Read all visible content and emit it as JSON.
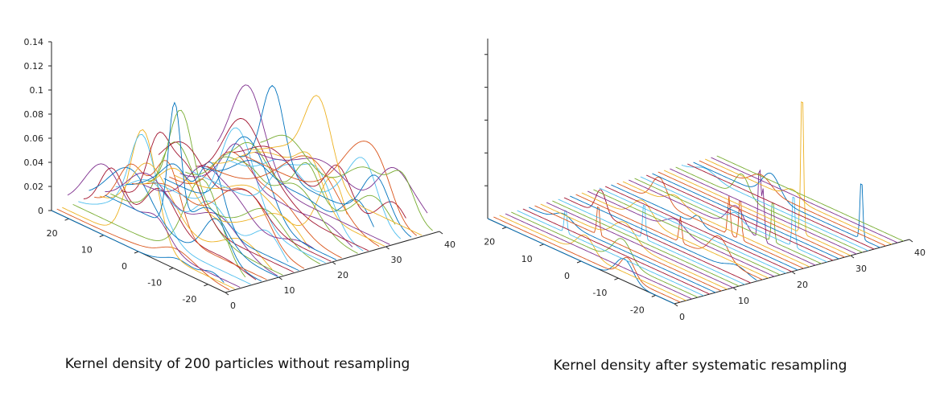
{
  "colors": [
    "#0072BD",
    "#D95319",
    "#EDB120",
    "#7E2F8E",
    "#77AC30",
    "#4DBEEE",
    "#A2142F"
  ],
  "chart_data": [
    {
      "type": "line",
      "subtype": "3d-waterfall",
      "caption": "Kernel density of 200 particles without resampling",
      "z_ticks": [
        "0",
        "0.02",
        "0.04",
        "0.06",
        "0.08",
        "0.1",
        "0.12",
        "0.14"
      ],
      "z_range": [
        0,
        0.14
      ],
      "x_range": [
        -25,
        25
      ],
      "x_ticks": [
        "20",
        "10",
        "0",
        "-10",
        "-20"
      ],
      "y_range": [
        0,
        40
      ],
      "y_ticks": [
        "0",
        "10",
        "20",
        "30",
        "40"
      ],
      "series_count": 40
    },
    {
      "type": "line",
      "subtype": "3d-waterfall",
      "caption": "Kernel density after systematic resampling",
      "z_ticks": [
        "",
        "",
        "",
        "",
        "",
        "",
        ""
      ],
      "x_range": [
        -25,
        25
      ],
      "x_ticks": [
        "20",
        "10",
        "0",
        "-10",
        "-20"
      ],
      "y_range": [
        0,
        40
      ],
      "y_ticks": [
        "0",
        "10",
        "20",
        "30",
        "40"
      ],
      "series_count": 40
    }
  ]
}
